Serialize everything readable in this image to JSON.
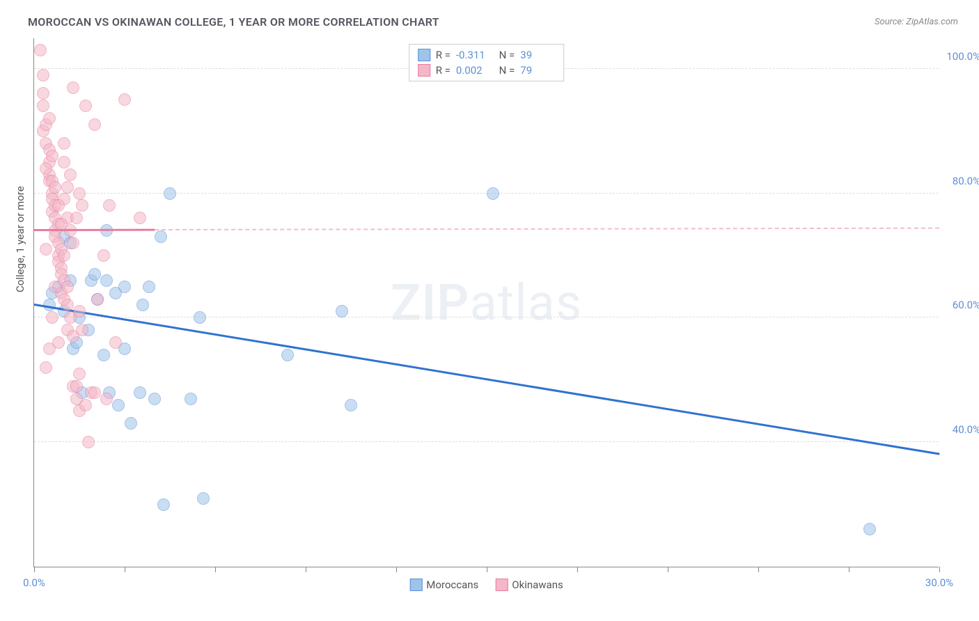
{
  "title": "MOROCCAN VS OKINAWAN COLLEGE, 1 YEAR OR MORE CORRELATION CHART",
  "source": "Source: ZipAtlas.com",
  "watermark": "ZIPatlas",
  "y_axis_label": "College, 1 year or more",
  "chart": {
    "type": "scatter",
    "xlim": [
      0,
      30
    ],
    "ylim": [
      20,
      105
    ],
    "x_ticks": [
      0,
      3,
      6,
      9,
      12,
      15,
      18,
      21,
      24,
      27,
      30
    ],
    "x_tick_labels": {
      "0": "0.0%",
      "30": "30.0%"
    },
    "y_ticks": [
      40,
      60,
      80,
      100
    ],
    "y_tick_labels": [
      "40.0%",
      "60.0%",
      "80.0%",
      "100.0%"
    ],
    "background_color": "#ffffff",
    "grid_color": "#dddddd",
    "point_radius": 9,
    "point_opacity": 0.55,
    "series": [
      {
        "name": "Moroccans",
        "color_fill": "#9fc4ea",
        "color_stroke": "#5b8fd6",
        "trend_color": "#2f72cf",
        "trend_width": 2.5,
        "trend_dashed_after_x": 30,
        "r": -0.311,
        "n": 39,
        "trend_y_at_x0": 62,
        "trend_y_at_x30": 38,
        "points": [
          [
            0.5,
            62
          ],
          [
            0.6,
            64
          ],
          [
            0.8,
            65
          ],
          [
            1.0,
            61
          ],
          [
            1.0,
            73
          ],
          [
            1.2,
            72
          ],
          [
            1.2,
            66
          ],
          [
            1.3,
            55
          ],
          [
            1.4,
            56
          ],
          [
            1.5,
            60
          ],
          [
            1.6,
            48
          ],
          [
            1.8,
            58
          ],
          [
            1.9,
            66
          ],
          [
            2.0,
            67
          ],
          [
            2.1,
            63
          ],
          [
            2.3,
            54
          ],
          [
            2.4,
            74
          ],
          [
            2.4,
            66
          ],
          [
            2.5,
            48
          ],
          [
            2.7,
            64
          ],
          [
            2.8,
            46
          ],
          [
            3.0,
            65
          ],
          [
            3.0,
            55
          ],
          [
            3.2,
            43
          ],
          [
            3.5,
            48
          ],
          [
            3.6,
            62
          ],
          [
            3.8,
            65
          ],
          [
            4.0,
            47
          ],
          [
            4.2,
            73
          ],
          [
            4.3,
            30
          ],
          [
            4.5,
            80
          ],
          [
            5.2,
            47
          ],
          [
            5.5,
            60
          ],
          [
            5.6,
            31
          ],
          [
            8.4,
            54
          ],
          [
            10.2,
            61
          ],
          [
            10.5,
            46
          ],
          [
            15.2,
            80
          ],
          [
            27.7,
            26
          ]
        ]
      },
      {
        "name": "Okinawans",
        "color_fill": "#f4b7c6",
        "color_stroke": "#e77ca0",
        "trend_color": "#e77ca0",
        "trend_width": 2.5,
        "trend_dashed_after_x": 4,
        "r": 0.002,
        "n": 79,
        "trend_y_at_x0": 74,
        "trend_y_at_x30": 74.3,
        "points": [
          [
            0.2,
            103
          ],
          [
            0.3,
            96
          ],
          [
            0.3,
            94
          ],
          [
            0.3,
            90
          ],
          [
            0.4,
            91
          ],
          [
            0.4,
            88
          ],
          [
            0.5,
            87
          ],
          [
            0.5,
            85
          ],
          [
            0.5,
            83
          ],
          [
            0.5,
            82
          ],
          [
            0.6,
            82
          ],
          [
            0.6,
            80
          ],
          [
            0.6,
            79
          ],
          [
            0.6,
            77
          ],
          [
            0.7,
            78
          ],
          [
            0.7,
            76
          ],
          [
            0.7,
            74
          ],
          [
            0.7,
            73
          ],
          [
            0.8,
            75
          ],
          [
            0.8,
            72
          ],
          [
            0.8,
            70
          ],
          [
            0.8,
            69
          ],
          [
            0.9,
            71
          ],
          [
            0.9,
            68
          ],
          [
            0.9,
            67
          ],
          [
            0.9,
            64
          ],
          [
            1.0,
            70
          ],
          [
            1.0,
            66
          ],
          [
            1.0,
            63
          ],
          [
            1.0,
            85
          ],
          [
            1.0,
            88
          ],
          [
            1.1,
            65
          ],
          [
            1.1,
            62
          ],
          [
            1.1,
            58
          ],
          [
            1.1,
            76
          ],
          [
            1.2,
            74
          ],
          [
            1.2,
            60
          ],
          [
            1.2,
            83
          ],
          [
            1.3,
            97
          ],
          [
            1.3,
            72
          ],
          [
            1.3,
            57
          ],
          [
            1.3,
            49
          ],
          [
            1.4,
            49
          ],
          [
            1.4,
            47
          ],
          [
            1.4,
            76
          ],
          [
            1.5,
            45
          ],
          [
            1.5,
            51
          ],
          [
            1.5,
            80
          ],
          [
            1.5,
            61
          ],
          [
            1.6,
            78
          ],
          [
            1.6,
            58
          ],
          [
            1.7,
            94
          ],
          [
            1.7,
            46
          ],
          [
            1.8,
            40
          ],
          [
            1.9,
            48
          ],
          [
            2.0,
            48
          ],
          [
            2.0,
            91
          ],
          [
            2.1,
            63
          ],
          [
            2.3,
            70
          ],
          [
            2.4,
            47
          ],
          [
            2.5,
            78
          ],
          [
            2.7,
            56
          ],
          [
            3.0,
            95
          ],
          [
            3.5,
            76
          ],
          [
            0.4,
            52
          ],
          [
            0.5,
            55
          ],
          [
            0.6,
            60
          ],
          [
            0.7,
            65
          ],
          [
            0.8,
            56
          ],
          [
            0.9,
            75
          ],
          [
            1.0,
            79
          ],
          [
            1.1,
            81
          ],
          [
            0.3,
            99
          ],
          [
            0.4,
            84
          ],
          [
            0.5,
            92
          ],
          [
            0.6,
            86
          ],
          [
            0.7,
            81
          ],
          [
            0.8,
            78
          ],
          [
            0.4,
            71
          ]
        ]
      }
    ]
  },
  "legend_top": [
    {
      "swatch_fill": "#9fc4ea",
      "swatch_stroke": "#5b8fd6",
      "r": "-0.311",
      "n": "39"
    },
    {
      "swatch_fill": "#f4b7c6",
      "swatch_stroke": "#e77ca0",
      "r": "0.002",
      "n": "79"
    }
  ],
  "legend_bottom": [
    {
      "swatch_fill": "#9fc4ea",
      "swatch_stroke": "#5b8fd6",
      "label": "Moroccans"
    },
    {
      "swatch_fill": "#f4b7c6",
      "swatch_stroke": "#e77ca0",
      "label": "Okinawans"
    }
  ]
}
